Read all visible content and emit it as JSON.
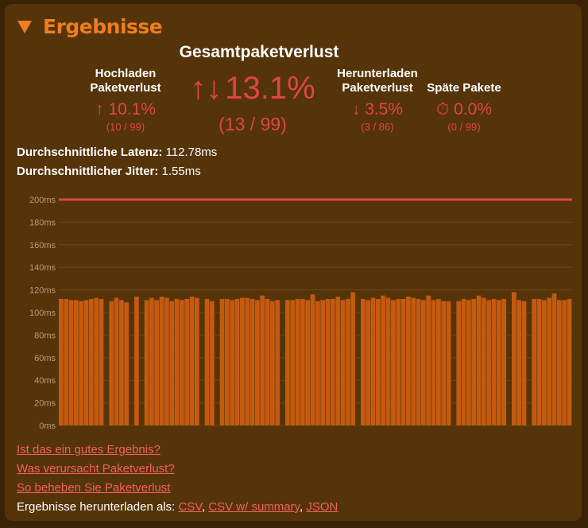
{
  "section_title": "Ergebnisse",
  "total": {
    "label": "Gesamtpaketverlust",
    "arrows": "↑↓",
    "percent": "13.1%",
    "ratio": "(13 / 99)"
  },
  "upload": {
    "label_line1": "Hochladen",
    "label_line2": "Paketverlust",
    "arrow": "↑",
    "percent": "10.1%",
    "ratio": "(10 / 99)"
  },
  "download": {
    "label_line1": "Herunterladen",
    "label_line2": "Paketverlust",
    "arrow": "↓",
    "percent": "3.5%",
    "ratio": "(3 / 86)"
  },
  "late": {
    "label": "Späte Pakete",
    "icon": "stopwatch-icon",
    "icon_glyph": "⏱",
    "percent": "0.0%",
    "ratio": "(0 / 99)"
  },
  "latency": {
    "label": "Durchschnittliche Latenz:",
    "value": "112.78ms"
  },
  "jitter": {
    "label": "Durchschnittlicher Jitter:",
    "value": "1.55ms"
  },
  "links": {
    "good_result": "Ist das ein gutes Ergebnis?",
    "cause": "Was verursacht Paketverlust?",
    "fix": "So beheben Sie Paketverlust"
  },
  "download_results": {
    "label": "Ergebnisse herunterladen als:",
    "sep": ", ",
    "csv": "CSV",
    "csv_summary": "CSV w/ summary",
    "json": "JSON"
  },
  "colors": {
    "accent": "#f07d1e",
    "bar": "#c35a0f",
    "loss": "#e04545",
    "panel": "#563409",
    "page": "#3a2205"
  },
  "chart_data": {
    "type": "bar",
    "ylim": [
      0,
      200
    ],
    "yticks": [
      "0ms",
      "20ms",
      "40ms",
      "60ms",
      "80ms",
      "100ms",
      "120ms",
      "140ms",
      "160ms",
      "180ms",
      "200ms"
    ],
    "grid": true,
    "reference_line": 200,
    "xlabel": "",
    "ylabel": "",
    "values": [
      112,
      112,
      111,
      111,
      110,
      111,
      112,
      113,
      112,
      null,
      110,
      113,
      111,
      109,
      null,
      114,
      null,
      111,
      113,
      111,
      114,
      113,
      110,
      112,
      111,
      112,
      114,
      113,
      null,
      112,
      110,
      null,
      112,
      112,
      111,
      112,
      113,
      113,
      112,
      111,
      115,
      112,
      110,
      111,
      null,
      111,
      111,
      112,
      112,
      111,
      116,
      110,
      111,
      112,
      112,
      114,
      111,
      112,
      118,
      null,
      112,
      111,
      113,
      112,
      115,
      113,
      111,
      112,
      112,
      114,
      113,
      112,
      111,
      115,
      111,
      112,
      110,
      110,
      null,
      110,
      112,
      111,
      112,
      115,
      113,
      111,
      112,
      111,
      112,
      null,
      118,
      111,
      110,
      null,
      112,
      112,
      111,
      113,
      117,
      111,
      111,
      112
    ]
  }
}
